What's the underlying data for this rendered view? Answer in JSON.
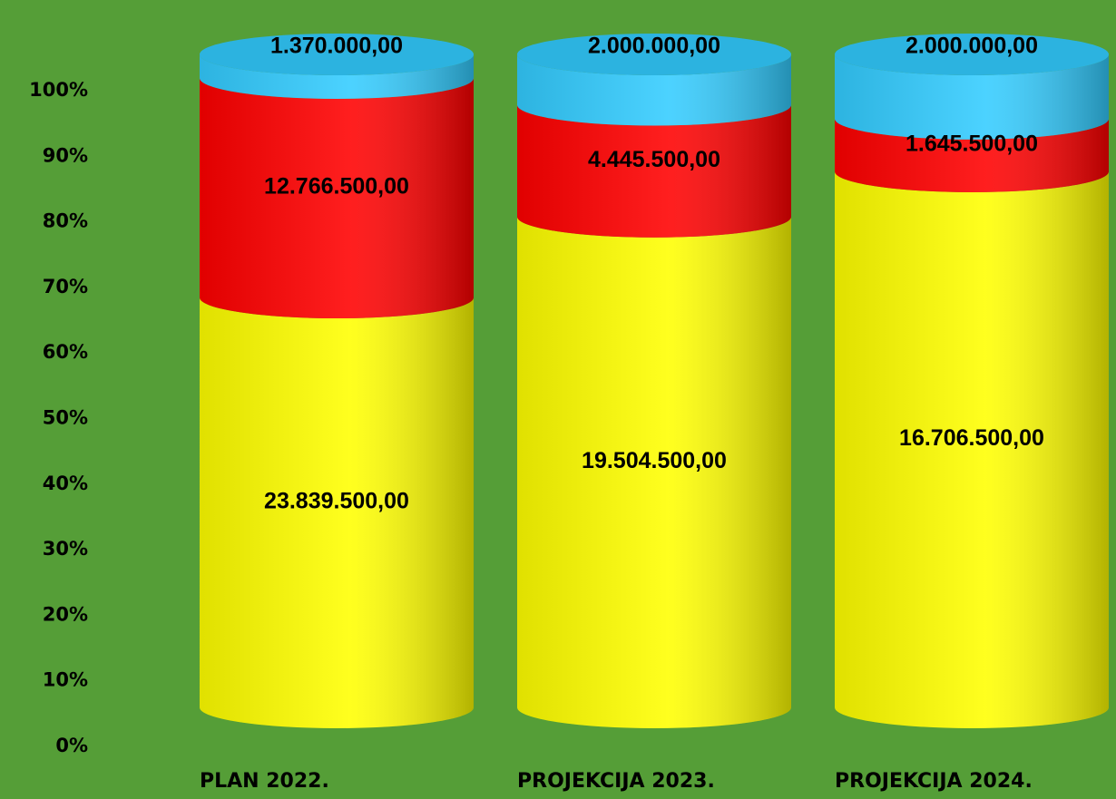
{
  "chart_data": {
    "type": "stacked-cylinder",
    "stacking": "percent",
    "categories": [
      "PLAN 2022.",
      "PROJEKCIJA 2023.",
      "PROJEKCIJA 2024."
    ],
    "series": [
      {
        "color": "#ffff00",
        "values": [
          23839500,
          19504500,
          16706500
        ],
        "value_labels": [
          "23.839.500,00",
          "19.504.500,00",
          "16.706.500,00"
        ]
      },
      {
        "color": "#ff0000",
        "values": [
          12766500,
          4445500,
          1645500
        ],
        "value_labels": [
          "12.766.500,00",
          "4.445.500,00",
          "1.645.500,00"
        ]
      },
      {
        "color": "#33ccff",
        "values": [
          1370000,
          2000000,
          2000000
        ],
        "value_labels": [
          "1.370.000,00",
          "2.000.000,00",
          "2.000.000,00"
        ]
      }
    ],
    "ylim": [
      0,
      100
    ],
    "yticks": [
      {
        "value": 0,
        "label": "0%"
      },
      {
        "value": 10,
        "label": "10%"
      },
      {
        "value": 20,
        "label": "20%"
      },
      {
        "value": 30,
        "label": "30%"
      },
      {
        "value": 40,
        "label": "40%"
      },
      {
        "value": 50,
        "label": "50%"
      },
      {
        "value": 60,
        "label": "60%"
      },
      {
        "value": 70,
        "label": "70%"
      },
      {
        "value": 80,
        "label": "80%"
      },
      {
        "value": 90,
        "label": "90%"
      },
      {
        "value": 100,
        "label": "100%"
      }
    ],
    "grid": false
  }
}
